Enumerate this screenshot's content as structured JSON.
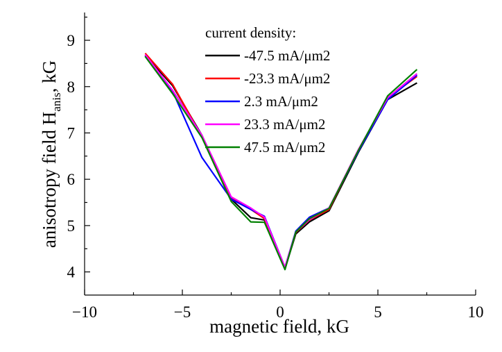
{
  "chart_data": {
    "type": "line",
    "xlabel": "magnetic field, kG",
    "ylabel_parts": {
      "main": "anisotropy field H",
      "sub": "anis",
      "tail": ", kG"
    },
    "xlim": [
      -10,
      10
    ],
    "ylim": [
      3.5,
      9.6
    ],
    "x_ticks": [
      -10,
      -5,
      0,
      5,
      10
    ],
    "y_ticks": [
      4,
      5,
      6,
      7,
      8,
      9
    ],
    "grid": false,
    "legend_title": "current density:",
    "legend_position": "top-center",
    "series": [
      {
        "name": "-47.5 mA/μm2",
        "color": "#000000",
        "x": [
          -6.9,
          -5.5,
          -4.0,
          -2.5,
          -1.5,
          -0.8,
          0.25,
          0.8,
          1.5,
          2.5,
          4.0,
          5.5,
          7.0
        ],
        "y": [
          8.68,
          8.02,
          6.95,
          5.57,
          5.17,
          5.12,
          4.07,
          4.82,
          5.08,
          5.32,
          6.58,
          7.72,
          8.08
        ]
      },
      {
        "name": "-23.3 mA/μm2",
        "color": "#ff0000",
        "x": [
          -6.9,
          -5.5,
          -4.0,
          -2.5,
          -1.5,
          -0.8,
          0.25,
          0.8,
          1.5,
          2.5,
          4.0,
          5.5,
          7.0
        ],
        "y": [
          8.72,
          8.05,
          6.92,
          5.6,
          5.35,
          5.15,
          4.08,
          4.85,
          5.12,
          5.35,
          6.62,
          7.76,
          8.22
        ]
      },
      {
        "name": "2.3 mA/μm2",
        "color": "#0000ff",
        "x": [
          -6.9,
          -5.5,
          -4.0,
          -2.5,
          -1.5,
          -0.8,
          0.25,
          0.8,
          1.5,
          2.5,
          4.0,
          5.5,
          7.0
        ],
        "y": [
          8.66,
          7.9,
          6.47,
          5.57,
          5.35,
          5.2,
          4.1,
          4.88,
          5.18,
          5.38,
          6.6,
          7.72,
          8.25
        ]
      },
      {
        "name": "23.3 mA/μm2",
        "color": "#ff00ff",
        "x": [
          -6.9,
          -5.5,
          -4.0,
          -2.5,
          -1.5,
          -0.8,
          0.25,
          0.8,
          1.5,
          2.5,
          4.0,
          5.5,
          7.0
        ],
        "y": [
          8.69,
          7.92,
          6.95,
          5.62,
          5.38,
          5.18,
          4.1,
          4.86,
          5.13,
          5.38,
          6.64,
          7.76,
          8.28
        ]
      },
      {
        "name": "47.5 mA/μm2",
        "color": "#008000",
        "x": [
          -6.9,
          -5.5,
          -4.0,
          -2.5,
          -1.5,
          -0.8,
          0.25,
          0.8,
          1.5,
          2.5,
          4.0,
          5.5,
          7.0
        ],
        "y": [
          8.65,
          7.85,
          6.9,
          5.52,
          5.08,
          5.07,
          4.05,
          4.86,
          5.15,
          5.37,
          6.62,
          7.8,
          8.37
        ]
      }
    ]
  }
}
